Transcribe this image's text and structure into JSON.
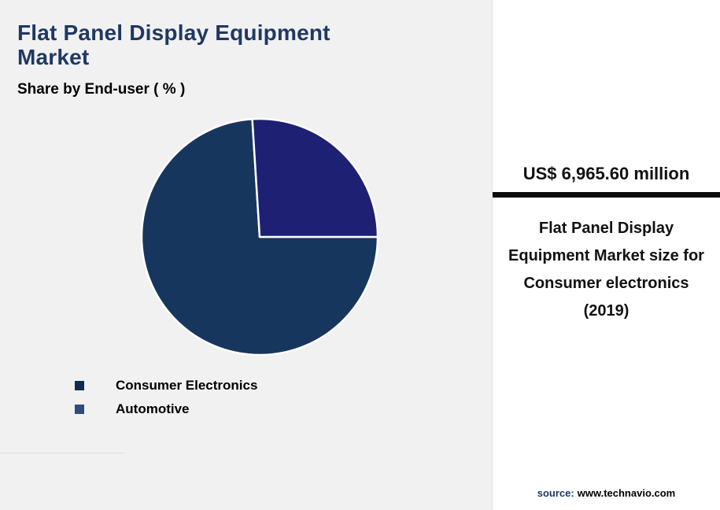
{
  "colors": {
    "page_bg": "#f1f1f2",
    "panel_bg": "#ffffff",
    "accent": "#1f3864",
    "divider_bar": "#0b0b0b",
    "slice_border": "#ffffff"
  },
  "header": {
    "title": "Flat Panel Display Equipment Market",
    "subtitle": "Share by End-user ( % )"
  },
  "chart_data": {
    "type": "pie",
    "title": "Flat Panel Display Equipment Market",
    "subtitle": "Share by End-user ( % )",
    "unit": "%",
    "start_angle_deg": 90,
    "legend_position": "bottom-left",
    "slice_border_color": "#ffffff",
    "slices": [
      {
        "label": "Consumer Electronics",
        "value": 74,
        "color": "#17365d"
      },
      {
        "label": "Automotive",
        "value": 26,
        "color": "#1e2173"
      }
    ]
  },
  "legend": {
    "items": [
      {
        "label": "Consumer Electronics",
        "color": "#132a4f"
      },
      {
        "label": "Automotive",
        "color": "#2e4d7d"
      }
    ]
  },
  "panel": {
    "headline": "US$ 6,965.60 million",
    "description": "Flat Panel Display Equipment Market size for Consumer electronics (2019)",
    "source": {
      "label": "source:",
      "value": "www.technavio.com"
    }
  }
}
